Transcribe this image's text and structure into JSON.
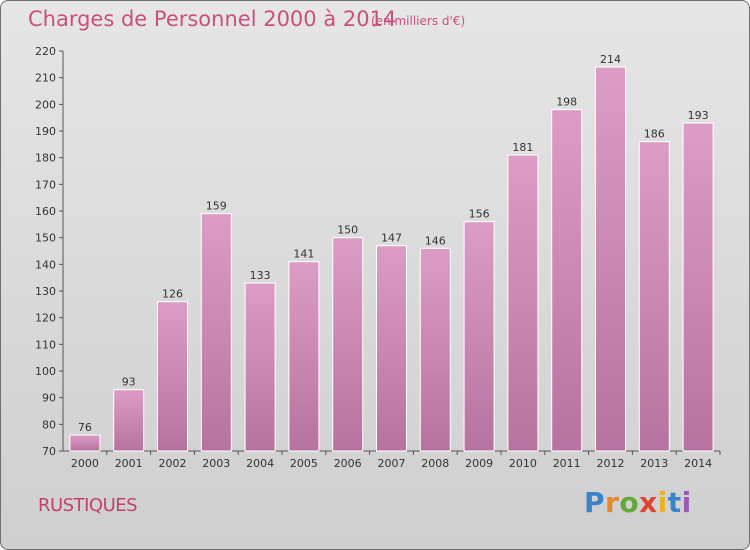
{
  "title": "Charges de Personnel 2000 à 2014",
  "unit_label": "(en milliers d'€)",
  "commune": "RUSTIQUES",
  "logo": {
    "letters": [
      {
        "ch": "P",
        "color": "#3a83c8"
      },
      {
        "ch": "r",
        "color": "#e08a2a"
      },
      {
        "ch": "o",
        "color": "#64a83a"
      },
      {
        "ch": "x",
        "color": "#e0442f"
      },
      {
        "ch": "i",
        "color": "#e9b31f"
      },
      {
        "ch": "t",
        "color": "#3a83c8"
      },
      {
        "ch": "i",
        "color": "#9a59b4"
      }
    ]
  },
  "colors": {
    "bar": "#dc9cc5",
    "bar_dark": "#b7739f",
    "title": "#c8507f"
  },
  "chart_data": {
    "type": "bar",
    "categories": [
      "2000",
      "2001",
      "2002",
      "2003",
      "2004",
      "2005",
      "2006",
      "2007",
      "2008",
      "2009",
      "2010",
      "2011",
      "2012",
      "2013",
      "2014"
    ],
    "values": [
      76,
      93,
      126,
      159,
      133,
      141,
      150,
      147,
      146,
      156,
      181,
      198,
      214,
      186,
      193
    ],
    "title": "Charges de Personnel 2000 à 2014",
    "ylim": [
      70,
      220
    ],
    "yticks": [
      70,
      80,
      90,
      100,
      110,
      120,
      130,
      140,
      150,
      160,
      170,
      180,
      190,
      200,
      210,
      220
    ],
    "grid": false,
    "data_labels": true
  }
}
